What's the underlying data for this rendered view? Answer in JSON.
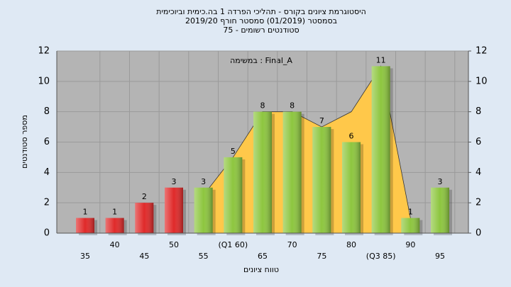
{
  "chart_data": {
    "type": "bar",
    "title": [
      "היסטוגרמת ציונים בקורס - תהליכי הפרדה 1 בה.כימית וביוכימית",
      "בסמסטר (01/2019) סמסטר חורף 2019/20",
      "סטודנטים רשומים - 75"
    ],
    "annotation": "במשימה : Final_A",
    "y_label": "מספר סטודנטים",
    "x_label": "טווח ציונים",
    "categories": [
      "35",
      "40",
      "45",
      "50",
      "55",
      "(Q1 60)",
      "65",
      "70",
      "75",
      "80",
      "(Q3 85)",
      "90",
      "95"
    ],
    "values": [
      1,
      1,
      2,
      3,
      3,
      5,
      8,
      8,
      7,
      6,
      11,
      1,
      3
    ],
    "colors": [
      "#e02a2a",
      "#e02a2a",
      "#e02a2a",
      "#e02a2a",
      "#8dc63f",
      "#8dc63f",
      "#8dc63f",
      "#8dc63f",
      "#8dc63f",
      "#8dc63f",
      "#8dc63f",
      "#8dc63f",
      "#8dc63f"
    ],
    "trend": {
      "color": "#ffc84a",
      "values": [
        null,
        null,
        null,
        null,
        2.5,
        5,
        8,
        8,
        7,
        8,
        11,
        1,
        null
      ]
    },
    "ylim": [
      0,
      12
    ],
    "yticks": [
      0,
      2,
      4,
      6,
      8,
      10,
      12
    ],
    "y2lim": [
      0,
      12
    ],
    "y2ticks": [
      0,
      2,
      4,
      6,
      8,
      10,
      12
    ],
    "grid": true
  }
}
